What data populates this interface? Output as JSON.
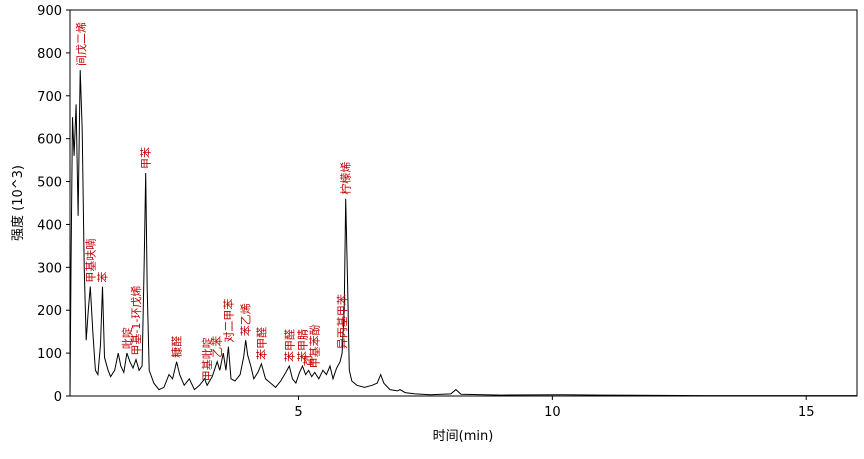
{
  "chart_data": {
    "type": "line",
    "x_label": "时间(min)",
    "y_label": "强度 (10^3)",
    "xlim": [
      0.5,
      16
    ],
    "ylim": [
      0,
      900
    ],
    "xticks": [
      5,
      10,
      15
    ],
    "yticks": [
      0,
      100,
      200,
      300,
      400,
      500,
      600,
      700,
      800,
      900
    ],
    "series": [
      {
        "color": "#000000",
        "x": [
          0.5,
          0.52,
          0.55,
          0.58,
          0.62,
          0.66,
          0.7,
          0.74,
          0.78,
          0.82,
          0.86,
          0.9,
          0.95,
          1.0,
          1.05,
          1.1,
          1.14,
          1.18,
          1.25,
          1.3,
          1.38,
          1.45,
          1.5,
          1.56,
          1.62,
          1.68,
          1.74,
          1.8,
          1.86,
          1.92,
          1.96,
          1.99,
          2.02,
          2.06,
          2.15,
          2.25,
          2.35,
          2.45,
          2.52,
          2.6,
          2.66,
          2.75,
          2.85,
          2.95,
          3.05,
          3.15,
          3.2,
          3.3,
          3.4,
          3.45,
          3.52,
          3.57,
          3.62,
          3.67,
          3.75,
          3.85,
          3.92,
          3.96,
          4.0,
          4.06,
          4.12,
          4.2,
          4.27,
          4.35,
          4.45,
          4.55,
          4.65,
          4.75,
          4.82,
          4.88,
          4.95,
          5.02,
          5.08,
          5.14,
          5.2,
          5.26,
          5.32,
          5.4,
          5.48,
          5.55,
          5.62,
          5.68,
          5.75,
          5.82,
          5.86,
          5.9,
          5.93,
          5.97,
          6.0,
          6.05,
          6.15,
          6.3,
          6.45,
          6.55,
          6.62,
          6.68,
          6.8,
          6.95,
          7.0,
          7.1,
          7.3,
          7.6,
          8.0,
          8.1,
          8.2,
          9,
          10.2,
          11,
          13,
          16
        ],
        "values": [
          0,
          300,
          650,
          560,
          680,
          420,
          760,
          620,
          300,
          130,
          200,
          255,
          150,
          60,
          50,
          120,
          255,
          90,
          60,
          45,
          60,
          100,
          70,
          55,
          100,
          80,
          65,
          85,
          60,
          70,
          300,
          520,
          250,
          60,
          30,
          15,
          20,
          50,
          40,
          80,
          50,
          25,
          40,
          15,
          25,
          40,
          25,
          45,
          80,
          60,
          100,
          60,
          115,
          40,
          35,
          50,
          90,
          130,
          95,
          70,
          40,
          55,
          75,
          40,
          30,
          20,
          35,
          55,
          70,
          40,
          30,
          55,
          70,
          50,
          60,
          45,
          55,
          40,
          60,
          50,
          70,
          40,
          65,
          80,
          100,
          200,
          460,
          250,
          60,
          35,
          25,
          20,
          25,
          30,
          50,
          30,
          15,
          12,
          15,
          8,
          5,
          3,
          5,
          15,
          4,
          2,
          3,
          2,
          1,
          1
        ]
      }
    ],
    "annotations": [
      {
        "x": 0.72,
        "text": "间戊二烯"
      },
      {
        "x": 0.9,
        "text": "甲基呋喃"
      },
      {
        "x": 1.14,
        "text": "苯"
      },
      {
        "x": 1.62,
        "text": "吡啶"
      },
      {
        "x": 1.8,
        "text": "甲基-1-环戊烯"
      },
      {
        "x": 1.99,
        "text": "甲苯"
      },
      {
        "x": 2.6,
        "text": "糠醛"
      },
      {
        "x": 3.2,
        "text": "甲基吡啶"
      },
      {
        "x": 3.4,
        "text": "乙苯"
      },
      {
        "x": 3.62,
        "text": "对二甲苯"
      },
      {
        "x": 3.96,
        "text": "苯乙烯"
      },
      {
        "x": 4.27,
        "text": "苯甲醛"
      },
      {
        "x": 4.82,
        "text": "苯甲醛"
      },
      {
        "x": 5.08,
        "text": "苯甲腈"
      },
      {
        "x": 5.2,
        "text": "茚"
      },
      {
        "x": 5.32,
        "text": "甲基苯酚"
      },
      {
        "x": 5.86,
        "text": "异丙基甲苯"
      },
      {
        "x": 5.93,
        "text": "柠檬烯"
      }
    ]
  }
}
